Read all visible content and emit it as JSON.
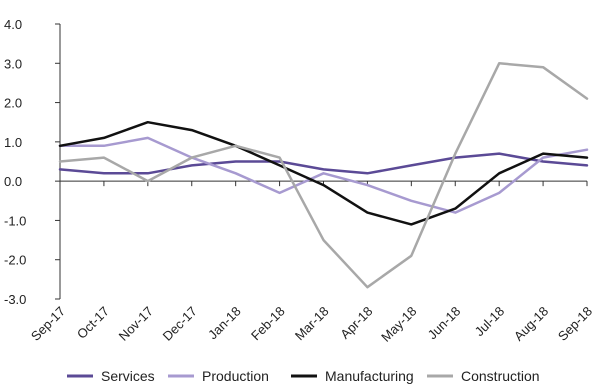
{
  "chart_data": {
    "type": "line",
    "categories": [
      "Sep-17",
      "Oct-17",
      "Nov-17",
      "Dec-17",
      "Jan-18",
      "Feb-18",
      "Mar-18",
      "Apr-18",
      "May-18",
      "Jun-18",
      "Jul-18",
      "Aug-18",
      "Sep-18"
    ],
    "ylim": [
      -3.0,
      4.0
    ],
    "yticks": [
      "-3.0",
      "-2.0",
      "-1.0",
      "0.0",
      "1.0",
      "2.0",
      "3.0",
      "4.0"
    ],
    "grid": false,
    "legend_position": "bottom",
    "series": [
      {
        "name": "Services",
        "color": "#5b4a96",
        "values": [
          0.3,
          0.2,
          0.2,
          0.4,
          0.5,
          0.5,
          0.3,
          0.2,
          0.4,
          0.6,
          0.7,
          0.5,
          0.4
        ]
      },
      {
        "name": "Production",
        "color": "#a79ad0",
        "values": [
          0.9,
          0.9,
          1.1,
          0.6,
          0.2,
          -0.3,
          0.2,
          -0.1,
          -0.5,
          -0.8,
          -0.3,
          0.6,
          0.8
        ]
      },
      {
        "name": "Manufacturing",
        "color": "#111111",
        "values": [
          0.9,
          1.1,
          1.5,
          1.3,
          0.9,
          0.4,
          -0.1,
          -0.8,
          -1.1,
          -0.7,
          0.2,
          0.7,
          0.6
        ]
      },
      {
        "name": "Construction",
        "color": "#a8a8a8",
        "values": [
          0.5,
          0.6,
          0.0,
          0.6,
          0.9,
          0.6,
          -1.5,
          -2.7,
          -1.9,
          0.7,
          3.0,
          2.9,
          2.1
        ]
      }
    ]
  }
}
